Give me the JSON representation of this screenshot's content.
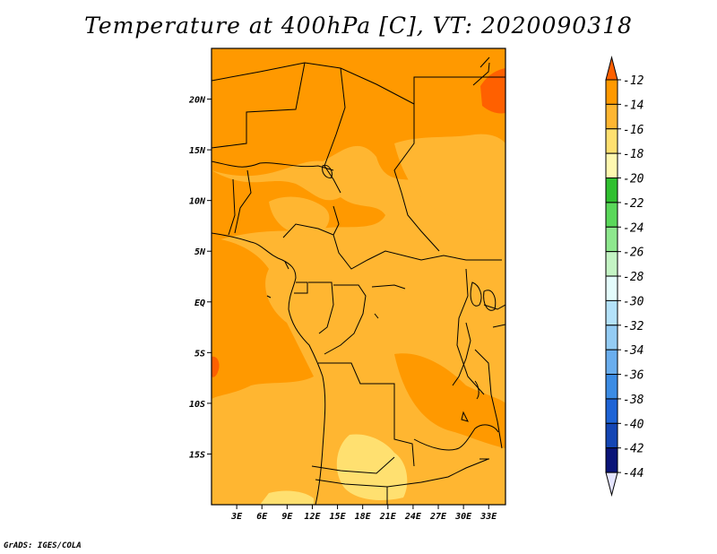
{
  "title": "Temperature at 400hPa [C], VT: 2020090318",
  "credit": "GrADS: IGES/COLA",
  "map": {
    "lon_range": [
      0,
      35
    ],
    "lat_range": [
      -20,
      25
    ],
    "lat_ticks": [
      {
        "value": 20,
        "label": "20N"
      },
      {
        "value": 15,
        "label": "15N"
      },
      {
        "value": 10,
        "label": "10N"
      },
      {
        "value": 5,
        "label": "5N"
      },
      {
        "value": 0,
        "label": "EQ"
      },
      {
        "value": -5,
        "label": "5S"
      },
      {
        "value": -10,
        "label": "10S"
      },
      {
        "value": -15,
        "label": "15S"
      }
    ],
    "lon_ticks": [
      {
        "value": 3,
        "label": "3E"
      },
      {
        "value": 6,
        "label": "6E"
      },
      {
        "value": 9,
        "label": "9E"
      },
      {
        "value": 12,
        "label": "12E"
      },
      {
        "value": 15,
        "label": "15E"
      },
      {
        "value": 18,
        "label": "18E"
      },
      {
        "value": 21,
        "label": "21E"
      },
      {
        "value": 24,
        "label": "24E"
      },
      {
        "value": 27,
        "label": "27E"
      },
      {
        "value": 30,
        "label": "30E"
      },
      {
        "value": 33,
        "label": "33E"
      }
    ]
  },
  "colorbar": {
    "levels": [
      {
        "label": "-12",
        "color": "#ff6000"
      },
      {
        "label": "-14",
        "color": "#ff9900"
      },
      {
        "label": "-16",
        "color": "#ffb631"
      },
      {
        "label": "-18",
        "color": "#ffe070"
      },
      {
        "label": "-20",
        "color": "#fff8b0"
      },
      {
        "label": "-22",
        "color": "#30c030"
      },
      {
        "label": "-24",
        "color": "#5ad85a"
      },
      {
        "label": "-26",
        "color": "#8ee88e"
      },
      {
        "label": "-28",
        "color": "#c4f4c4"
      },
      {
        "label": "-30",
        "color": "#e4fcfc"
      },
      {
        "label": "-32",
        "color": "#b4e2fa"
      },
      {
        "label": "-34",
        "color": "#94ccf4"
      },
      {
        "label": "-36",
        "color": "#6aaeee"
      },
      {
        "label": "-38",
        "color": "#3c8ce4"
      },
      {
        "label": "-40",
        "color": "#1e64d6"
      },
      {
        "label": "-42",
        "color": "#1446b4"
      },
      {
        "label": "-44",
        "color": "#0a1478"
      }
    ],
    "top_color": "#ff6000",
    "bottom_color": "#e4e4ff"
  }
}
